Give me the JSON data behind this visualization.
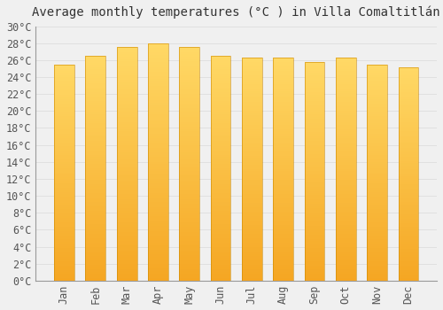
{
  "title": "Average monthly temperatures (°C ) in Villa Comaltitlán",
  "months": [
    "Jan",
    "Feb",
    "Mar",
    "Apr",
    "May",
    "Jun",
    "Jul",
    "Aug",
    "Sep",
    "Oct",
    "Nov",
    "Dec"
  ],
  "values": [
    25.5,
    26.5,
    27.5,
    28.0,
    27.5,
    26.5,
    26.3,
    26.3,
    25.8,
    26.3,
    25.5,
    25.2
  ],
  "bar_color_bottom": "#F5A623",
  "bar_color_top": "#FFD966",
  "ylim": [
    0,
    30
  ],
  "ytick_step": 2,
  "background_color": "#f0f0f0",
  "grid_color": "#dddddd",
  "title_fontsize": 10,
  "tick_fontsize": 8.5
}
